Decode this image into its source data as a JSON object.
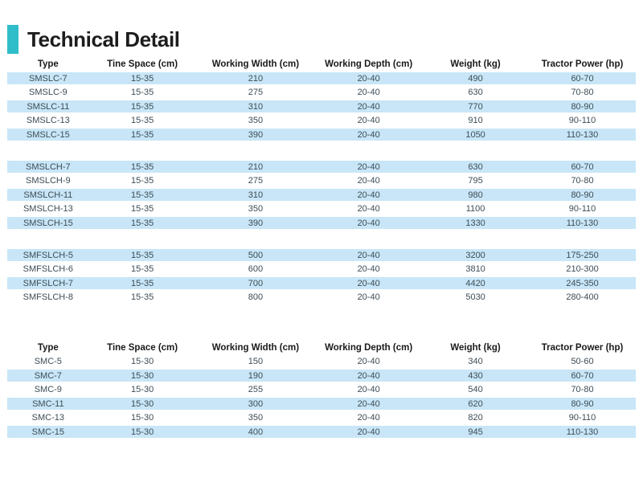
{
  "page_title": "Technical Detail",
  "colors": {
    "accent": "#2fbdc9",
    "row_highlight": "#c8e6f7",
    "header_text": "#1a1a1a",
    "cell_text": "#3d4c56",
    "title_text": "#1d1d1d"
  },
  "tables": [
    {
      "columns": [
        "Type",
        "Tine Space (cm)",
        "Working Width (cm)",
        "Working Depth (cm)",
        "Weight (kg)",
        "Tractor Power (hp)"
      ],
      "sections": [
        {
          "name": "SMSLC",
          "first_row_shaded": true,
          "rows": [
            [
              "SMSLC-7",
              "15-35",
              "210",
              "20-40",
              "490",
              "60-70"
            ],
            [
              "SMSLC-9",
              "15-35",
              "275",
              "20-40",
              "630",
              "70-80"
            ],
            [
              "SMSLC-11",
              "15-35",
              "310",
              "20-40",
              "770",
              "80-90"
            ],
            [
              "SMSLC-13",
              "15-35",
              "350",
              "20-40",
              "910",
              "90-110"
            ],
            [
              "SMSLC-15",
              "15-35",
              "390",
              "20-40",
              "1050",
              "110-130"
            ]
          ]
        },
        {
          "name": "SMSLCH",
          "first_row_shaded": true,
          "rows": [
            [
              "SMSLCH-7",
              "15-35",
              "210",
              "20-40",
              "630",
              "60-70"
            ],
            [
              "SMSLCH-9",
              "15-35",
              "275",
              "20-40",
              "795",
              "70-80"
            ],
            [
              "SMSLCH-11",
              "15-35",
              "310",
              "20-40",
              "980",
              "80-90"
            ],
            [
              "SMSLCH-13",
              "15-35",
              "350",
              "20-40",
              "1100",
              "90-110"
            ],
            [
              "SMSLCH-15",
              "15-35",
              "390",
              "20-40",
              "1330",
              "110-130"
            ]
          ]
        },
        {
          "name": "SMFSLCH",
          "first_row_shaded": true,
          "rows": [
            [
              "SMFSLCH-5",
              "15-35",
              "500",
              "20-40",
              "3200",
              "175-250"
            ],
            [
              "SMFSLCH-6",
              "15-35",
              "600",
              "20-40",
              "3810",
              "210-300"
            ],
            [
              "SMFSLCH-7",
              "15-35",
              "700",
              "20-40",
              "4420",
              "245-350"
            ],
            [
              "SMFSLCH-8",
              "15-35",
              "800",
              "20-40",
              "5030",
              "280-400"
            ]
          ]
        }
      ]
    },
    {
      "columns": [
        "Type",
        "Tine Space (cm)",
        "Working Width (cm)",
        "Working Depth (cm)",
        "Weight (kg)",
        "Tractor Power (hp)"
      ],
      "sections": [
        {
          "name": "SMC",
          "first_row_shaded": false,
          "rows": [
            [
              "SMC-5",
              "15-30",
              "150",
              "20-40",
              "340",
              "50-60"
            ],
            [
              "SMC-7",
              "15-30",
              "190",
              "20-40",
              "430",
              "60-70"
            ],
            [
              "SMC-9",
              "15-30",
              "255",
              "20-40",
              "540",
              "70-80"
            ],
            [
              "SMC-11",
              "15-30",
              "300",
              "20-40",
              "620",
              "80-90"
            ],
            [
              "SMC-13",
              "15-30",
              "350",
              "20-40",
              "820",
              "90-110"
            ],
            [
              "SMC-15",
              "15-30",
              "400",
              "20-40",
              "945",
              "110-130"
            ]
          ]
        }
      ]
    }
  ]
}
